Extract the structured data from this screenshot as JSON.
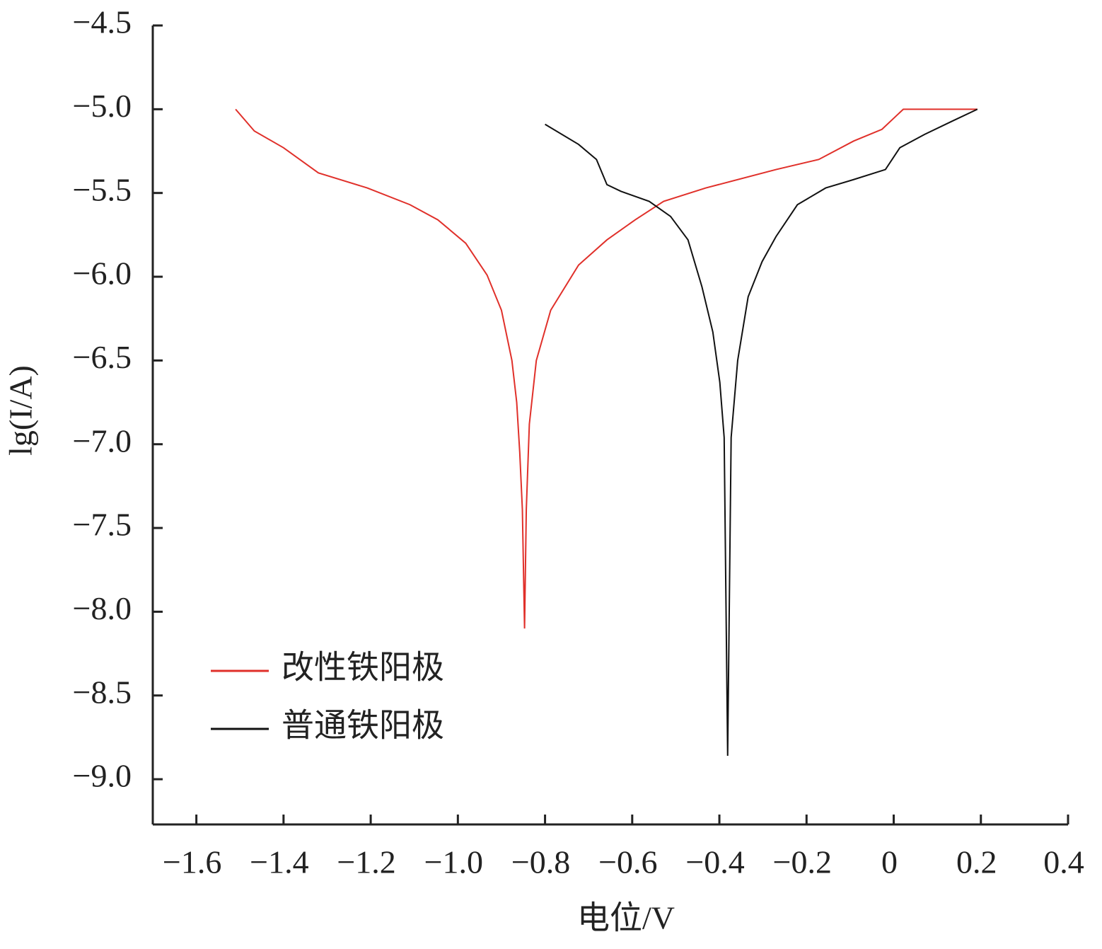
{
  "chart_data": {
    "type": "line",
    "x_label": "电位/V",
    "y_label": "lg(I/A)",
    "xlim": [
      -1.7,
      0.4
    ],
    "ylim": [
      -9.27,
      -4.5
    ],
    "xticks": [
      {
        "value": -1.6,
        "label": "−1.6"
      },
      {
        "value": -1.4,
        "label": "−1.4"
      },
      {
        "value": -1.2,
        "label": "−1.2"
      },
      {
        "value": -1.0,
        "label": "−1.0"
      },
      {
        "value": -0.8,
        "label": "−0.8"
      },
      {
        "value": -0.6,
        "label": "−0.6"
      },
      {
        "value": -0.4,
        "label": "−0.4"
      },
      {
        "value": -0.2,
        "label": "−0.2"
      },
      0,
      0.2,
      0.4
    ],
    "yticks": [
      {
        "value": -4.5,
        "label": "−4.5"
      },
      {
        "value": -5.0,
        "label": "−5.0"
      },
      {
        "value": -5.5,
        "label": "−5.5"
      },
      {
        "value": -6.0,
        "label": "−6.0"
      },
      {
        "value": -6.5,
        "label": "−6.5"
      },
      {
        "value": -7.0,
        "label": "−7.0"
      },
      {
        "value": -7.5,
        "label": "−7.5"
      },
      {
        "value": -8.0,
        "label": "−8.0"
      },
      {
        "value": -8.5,
        "label": "−8.5"
      },
      {
        "value": -9.0,
        "label": "−9.0"
      }
    ],
    "legend": "lower left",
    "series": [
      {
        "name": "改性铁阳极",
        "color": "#e0302a",
        "x": [
          -1.51,
          -1.467,
          -1.4,
          -1.32,
          -1.208,
          -1.11,
          -1.046,
          -0.982,
          -0.933,
          -0.9,
          -0.876,
          -0.865,
          -0.858,
          -0.852,
          -0.847,
          -0.843,
          -0.836,
          -0.82,
          -0.787,
          -0.723,
          -0.658,
          -0.593,
          -0.528,
          -0.431,
          -0.27,
          -0.172,
          -0.092,
          -0.027,
          0.022,
          0.192
        ],
        "values": [
          -5.0,
          -5.13,
          -5.23,
          -5.38,
          -5.47,
          -5.57,
          -5.66,
          -5.8,
          -5.99,
          -6.2,
          -6.5,
          -6.75,
          -7.05,
          -7.39,
          -8.1,
          -7.39,
          -6.88,
          -6.5,
          -6.2,
          -5.93,
          -5.78,
          -5.66,
          -5.55,
          -5.47,
          -5.36,
          -5.3,
          -5.19,
          -5.12,
          -5.0,
          -5.0
        ]
      },
      {
        "name": "普通铁阳极",
        "color": "#111111",
        "x": [
          -0.8,
          -0.723,
          -0.682,
          -0.658,
          -0.626,
          -0.561,
          -0.512,
          -0.472,
          -0.44,
          -0.415,
          -0.399,
          -0.389,
          -0.381,
          -0.373,
          -0.358,
          -0.334,
          -0.302,
          -0.27,
          -0.221,
          -0.156,
          -0.092,
          -0.019,
          0.014,
          0.071,
          0.135,
          0.192
        ],
        "values": [
          -5.09,
          -5.21,
          -5.3,
          -5.45,
          -5.49,
          -5.55,
          -5.64,
          -5.78,
          -6.06,
          -6.33,
          -6.63,
          -6.96,
          -8.86,
          -6.96,
          -6.5,
          -6.12,
          -5.91,
          -5.76,
          -5.57,
          -5.47,
          -5.42,
          -5.36,
          -5.23,
          -5.15,
          -5.07,
          -5.0
        ]
      }
    ]
  }
}
